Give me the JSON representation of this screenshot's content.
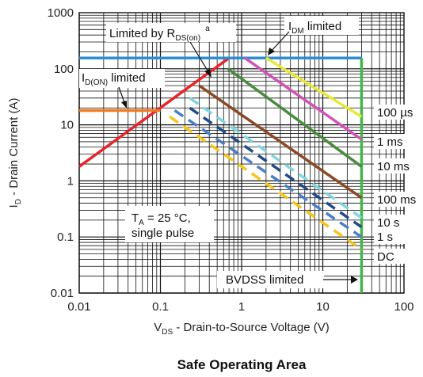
{
  "chart_data": {
    "type": "line",
    "title": "Safe Operating Area",
    "xlabel": "V",
    "xlabel_sub": "DS",
    "xlabel_rest": " - Drain-to-Source Voltage (V)",
    "ylabel": "I",
    "ylabel_sub": "D",
    "ylabel_rest": " - Drain Current (A)",
    "xscale": "log",
    "yscale": "log",
    "xlim": [
      0.01,
      100
    ],
    "ylim": [
      0.01,
      1000
    ],
    "grid": true,
    "x_ticks": [
      "0.01",
      "0.1",
      "1",
      "10",
      "100"
    ],
    "y_ticks": [
      "0.01",
      "0.1",
      "1",
      "10",
      "100",
      "1000"
    ],
    "series": [
      {
        "name": "",
        "color": "#e8242a",
        "dash": false,
        "points": [
          [
            0.01,
            1.8
          ],
          [
            0.7,
            155
          ]
        ]
      },
      {
        "name": "",
        "color": "#f47920",
        "dash": false,
        "points": [
          [
            0.01,
            18
          ],
          [
            0.1,
            18
          ]
        ]
      },
      {
        "name": "",
        "color": "#2e8ed4",
        "dash": false,
        "points": [
          [
            0.01,
            155
          ],
          [
            30,
            155
          ]
        ]
      },
      {
        "name": "",
        "color": "#43b649",
        "dash": false,
        "points": [
          [
            30,
            0.01
          ],
          [
            30,
            155
          ]
        ]
      },
      {
        "name": "100 µs",
        "color": "#e8e83a",
        "dash": false,
        "points": [
          [
            2,
            155
          ],
          [
            30,
            14
          ]
        ]
      },
      {
        "name": "1 ms",
        "color": "#d152b8",
        "dash": false,
        "points": [
          [
            1.1,
            155
          ],
          [
            30,
            5.5
          ]
        ]
      },
      {
        "name": "10 ms",
        "color": "#4a8c3f",
        "dash": false,
        "points": [
          [
            0.68,
            100
          ],
          [
            30,
            1.8
          ]
        ]
      },
      {
        "name": "100 ms",
        "color": "#8b4a23",
        "dash": false,
        "points": [
          [
            0.3,
            50
          ],
          [
            30,
            0.5
          ]
        ]
      },
      {
        "name": "10 s",
        "color": "#7fd5e0",
        "dash": true,
        "points": [
          [
            0.23,
            30
          ],
          [
            30,
            0.22
          ]
        ]
      },
      {
        "name": "",
        "color": "#1f4b8c",
        "dash": true,
        "points": [
          [
            0.23,
            20
          ],
          [
            30,
            0.15
          ]
        ]
      },
      {
        "name": "1 s",
        "color": "#4a7fc8",
        "dash": true,
        "points": [
          [
            0.15,
            18
          ],
          [
            30,
            0.1
          ]
        ]
      },
      {
        "name": "DC",
        "color": "#f5c518",
        "dash": true,
        "points": [
          [
            0.13,
            14
          ],
          [
            30,
            0.06
          ]
        ]
      }
    ],
    "right_labels": [
      "100 µs",
      "1 ms",
      "10 ms",
      "100 ms",
      "10 s",
      "1 s",
      "DC"
    ],
    "annotations": {
      "limited_by": "Limited by R",
      "limited_by_sub": "DS(on)",
      "limited_by_sup": "a",
      "idm": "I",
      "idm_sub": "DM",
      "idm_rest": " limited",
      "idon": "I",
      "idon_sub": "D(ON)",
      "idon_rest": " limited",
      "ta_line1_pre": "T",
      "ta_line1_sub": "A",
      "ta_line1_rest": " = 25 °C,",
      "ta_line2": "single pulse",
      "bvdss": "BVDSS limited"
    }
  }
}
